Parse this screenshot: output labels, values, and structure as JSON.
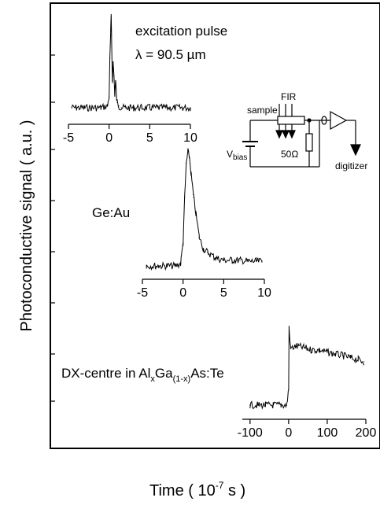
{
  "ylabel": "Photoconductive signal ( a.u. )",
  "xlabel": {
    "base": "Time ( 10",
    "exp": "-7",
    "unit": " s )"
  },
  "chart_data": [
    {
      "type": "line",
      "annotation_lines": [
        "excitation pulse",
        "λ = 90.5 µm"
      ],
      "annotation": "excitation pulse, λ = 90.5 µm",
      "xlim": [
        -5,
        10
      ],
      "x_ticks": [
        "-5",
        "0",
        "5",
        "10"
      ],
      "x": [
        -4.6,
        -4.0,
        -3.0,
        -2.0,
        -1.0,
        -0.2,
        0.0,
        0.1,
        0.2,
        0.25,
        0.3,
        0.4,
        0.5,
        0.6,
        0.7,
        0.8,
        0.9,
        1.0,
        1.2,
        1.5,
        2.0,
        3.0,
        4.0,
        5.0,
        6.0,
        7.0,
        8.0,
        9.0,
        10.0
      ],
      "y": [
        0.0,
        0.0,
        0.0,
        0.0,
        0.0,
        0.02,
        0.12,
        0.55,
        0.85,
        1.0,
        0.8,
        0.3,
        0.5,
        0.35,
        0.15,
        0.3,
        0.12,
        0.06,
        0.02,
        0.0,
        0.0,
        0.0,
        0.0,
        0.0,
        0.0,
        0.0,
        0.0,
        0.0,
        0.0
      ]
    },
    {
      "type": "line",
      "annotation_lines": [
        "Ge:Au"
      ],
      "annotation": "Ge:Au",
      "xlim": [
        -5,
        10
      ],
      "x_ticks": [
        "-5",
        "0",
        "5",
        "10"
      ],
      "x": [
        -4.5,
        -3.0,
        -2.0,
        -1.0,
        -0.3,
        0.0,
        0.2,
        0.4,
        0.6,
        0.8,
        1.0,
        1.3,
        1.6,
        2.0,
        2.5,
        3.0,
        4.0,
        5.0,
        6.0,
        7.0,
        8.0,
        9.0,
        9.7
      ],
      "y": [
        0.0,
        0.0,
        0.0,
        0.0,
        0.02,
        0.2,
        0.6,
        0.9,
        1.0,
        0.95,
        0.8,
        0.6,
        0.45,
        0.25,
        0.15,
        0.12,
        0.07,
        0.05,
        0.05,
        0.05,
        0.04,
        0.04,
        0.04
      ]
    },
    {
      "type": "line",
      "annotation_lines": [
        "DX-centre in Al_xGa_(1-x)As:Te"
      ],
      "annotation": "DX-centre in AlxGa(1-x)As:Te",
      "xlim": [
        -120,
        200
      ],
      "x_ticks": [
        "-100",
        "0",
        "100",
        "200"
      ],
      "x": [
        -100,
        -80,
        -60,
        -40,
        -20,
        -5,
        0,
        1,
        5,
        20,
        40,
        60,
        80,
        100,
        120,
        140,
        160,
        180,
        195
      ],
      "y": [
        0.0,
        0.0,
        0.0,
        0.0,
        0.0,
        0.0,
        0.2,
        1.0,
        0.72,
        0.75,
        0.73,
        0.7,
        0.7,
        0.67,
        0.65,
        0.63,
        0.6,
        0.58,
        0.55
      ]
    }
  ],
  "circuit": {
    "fir": "FIR",
    "sample": "sample",
    "vbias": "V",
    "vbias_sub": "bias",
    "resistor": "50Ω",
    "digitizer": "digitizer"
  }
}
